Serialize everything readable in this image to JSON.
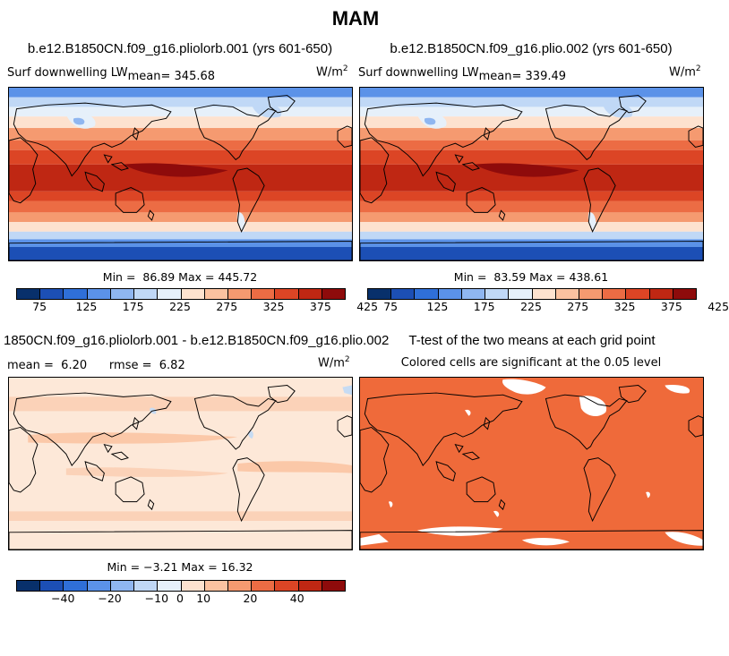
{
  "suptitle": "MAM",
  "colors": {
    "abs_palette": [
      "#08306b",
      "#1c4fb5",
      "#2f6fd8",
      "#5b92e8",
      "#8fb6f0",
      "#c0d8f6",
      "#e6f0fa",
      "#fde2cf",
      "#fbc2a0",
      "#f59a70",
      "#ec6c44",
      "#dc4525",
      "#bf2713",
      "#8e0b0b"
    ],
    "diff_palette": [
      "#08306b",
      "#1c4fb5",
      "#2f6fd8",
      "#5b92e8",
      "#8fb6f0",
      "#c0d8f6",
      "#e6f0fa",
      "#fde2cf",
      "#fbc2a0",
      "#f59a70",
      "#ec6c44",
      "#dc4525",
      "#bf2713",
      "#8e0b0b"
    ],
    "sig_fill": "#ef6a3a"
  },
  "panels": [
    {
      "id": "pliolorb",
      "title": "b.e12.B1850CN.f09_g16.pliolorb.001 (yrs 601-650)",
      "var_label": "Surf downwelling LW",
      "mean_label": "mean=",
      "mean_value": "345.68",
      "units": "W/m",
      "units_exp": "2",
      "min_label": "Min =",
      "min_value": "86.89",
      "max_label": "Max =",
      "max_value": "445.72",
      "cbar_ticks": [
        "75",
        "125",
        "175",
        "225",
        "275",
        "325",
        "375",
        "425"
      ]
    },
    {
      "id": "plio",
      "title": "b.e12.B1850CN.f09_g16.plio.002 (yrs 601-650)",
      "var_label": "Surf downwelling LW",
      "mean_label": "mean=",
      "mean_value": "339.49",
      "units": "W/m",
      "units_exp": "2",
      "min_label": "Min =",
      "min_value": "83.59",
      "max_label": "Max =",
      "max_value": "438.61",
      "cbar_ticks": [
        "75",
        "125",
        "175",
        "225",
        "275",
        "325",
        "375",
        "425"
      ]
    },
    {
      "id": "diff",
      "title": "1850CN.f09_g16.pliolorb.001 - b.e12.B1850CN.f09_g16.plio.002",
      "mean_label": "mean =",
      "mean_value": "6.20",
      "rmse_label": "rmse =",
      "rmse_value": "6.82",
      "units": "W/m",
      "units_exp": "2",
      "min_label": "Min =",
      "min_value": "−3.21",
      "max_label": "Max =",
      "max_value": "16.32",
      "cbar_ticks": [
        "−40",
        "−20",
        "−10",
        "0",
        "10",
        "20",
        "40"
      ]
    },
    {
      "id": "ttest",
      "title": "T-test of the two means at each grid point",
      "subtitle": "Colored cells are significant at the 0.05 level"
    }
  ]
}
